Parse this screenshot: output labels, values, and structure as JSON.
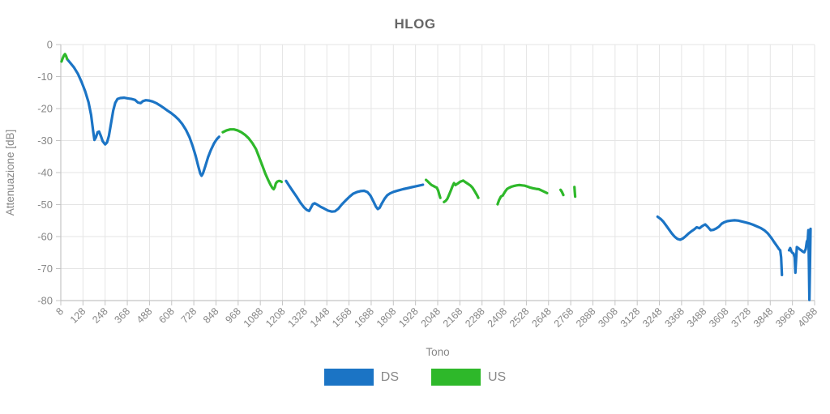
{
  "chart_data": {
    "type": "line",
    "title": "HLOG",
    "xlabel": "Tono",
    "ylabel": "Attenuazione [dB]",
    "xlim": [
      8,
      4088
    ],
    "ylim": [
      -80,
      0
    ],
    "grid": true,
    "legend_position": "bottom",
    "x_ticks": [
      8,
      128,
      248,
      368,
      488,
      608,
      728,
      848,
      968,
      1088,
      1208,
      1328,
      1448,
      1568,
      1688,
      1808,
      1928,
      2048,
      2168,
      2288,
      2408,
      2528,
      2648,
      2768,
      2888,
      3008,
      3128,
      3248,
      3368,
      3488,
      3608,
      3728,
      3848,
      3968,
      4088
    ],
    "y_ticks": [
      0,
      -10,
      -20,
      -30,
      -40,
      -50,
      -60,
      -70,
      -80
    ],
    "series": [
      {
        "name": "DS",
        "color": "#1b74c5",
        "segments": [
          [
            [
              43,
              -4.6
            ],
            [
              60,
              -5.8
            ],
            [
              80,
              -7.2
            ],
            [
              100,
              -9.1
            ],
            [
              120,
              -11.6
            ],
            [
              140,
              -14.6
            ],
            [
              158,
              -18
            ],
            [
              172,
              -22
            ],
            [
              183,
              -27
            ],
            [
              190,
              -29.8
            ],
            [
              198,
              -29
            ],
            [
              207,
              -27.4
            ],
            [
              215,
              -27.2
            ],
            [
              224,
              -28.4
            ],
            [
              235,
              -30.2
            ],
            [
              248,
              -31.2
            ],
            [
              258,
              -30.6
            ],
            [
              268,
              -28.6
            ],
            [
              280,
              -24.6
            ],
            [
              292,
              -20.6
            ],
            [
              303,
              -18.2
            ],
            [
              315,
              -17
            ],
            [
              330,
              -16.7
            ],
            [
              350,
              -16.6
            ],
            [
              370,
              -16.8
            ],
            [
              390,
              -17
            ],
            [
              410,
              -17.3
            ],
            [
              425,
              -18.1
            ],
            [
              440,
              -18.3
            ],
            [
              452,
              -17.7
            ],
            [
              468,
              -17.4
            ],
            [
              485,
              -17.5
            ],
            [
              505,
              -17.8
            ],
            [
              525,
              -18.3
            ],
            [
              545,
              -19
            ],
            [
              565,
              -19.8
            ],
            [
              585,
              -20.6
            ],
            [
              605,
              -21.4
            ],
            [
              625,
              -22.3
            ],
            [
              645,
              -23.4
            ],
            [
              665,
              -24.8
            ],
            [
              685,
              -26.6
            ],
            [
              705,
              -29
            ],
            [
              722,
              -31.8
            ],
            [
              738,
              -34.8
            ],
            [
              752,
              -38
            ],
            [
              763,
              -40.3
            ],
            [
              770,
              -41
            ],
            [
              778,
              -40.2
            ],
            [
              790,
              -38
            ],
            [
              805,
              -35.2
            ],
            [
              820,
              -33
            ],
            [
              838,
              -30.8
            ],
            [
              852,
              -29.6
            ],
            [
              865,
              -28.8
            ]
          ],
          [
            [
              1227,
              -42.6
            ],
            [
              1245,
              -44.2
            ],
            [
              1265,
              -45.9
            ],
            [
              1285,
              -47.6
            ],
            [
              1305,
              -49.4
            ],
            [
              1325,
              -50.9
            ],
            [
              1340,
              -51.7
            ],
            [
              1352,
              -52
            ],
            [
              1362,
              -51
            ],
            [
              1372,
              -49.9
            ],
            [
              1382,
              -49.6
            ],
            [
              1395,
              -50
            ],
            [
              1415,
              -50.7
            ],
            [
              1435,
              -51.3
            ],
            [
              1455,
              -51.9
            ],
            [
              1475,
              -52.2
            ],
            [
              1492,
              -52.1
            ],
            [
              1510,
              -51.3
            ],
            [
              1530,
              -49.9
            ],
            [
              1550,
              -48.7
            ],
            [
              1570,
              -47.6
            ],
            [
              1590,
              -46.6
            ],
            [
              1610,
              -46.1
            ],
            [
              1630,
              -45.8
            ],
            [
              1650,
              -45.7
            ],
            [
              1668,
              -46.1
            ],
            [
              1684,
              -47.2
            ],
            [
              1700,
              -49
            ],
            [
              1714,
              -50.7
            ],
            [
              1724,
              -51.4
            ],
            [
              1734,
              -51
            ],
            [
              1746,
              -49.6
            ],
            [
              1760,
              -48.2
            ],
            [
              1775,
              -47.1
            ],
            [
              1790,
              -46.5
            ],
            [
              1810,
              -46
            ],
            [
              1835,
              -45.6
            ],
            [
              1860,
              -45.2
            ],
            [
              1890,
              -44.8
            ],
            [
              1920,
              -44.4
            ],
            [
              1945,
              -44.1
            ],
            [
              1968,
              -43.8
            ]
          ],
          [
            [
              3238,
              -53.8
            ],
            [
              3255,
              -54.5
            ],
            [
              3270,
              -55.4
            ],
            [
              3285,
              -56.6
            ],
            [
              3300,
              -57.8
            ],
            [
              3315,
              -59
            ],
            [
              3330,
              -60
            ],
            [
              3345,
              -60.7
            ],
            [
              3360,
              -61
            ],
            [
              3375,
              -60.6
            ],
            [
              3390,
              -59.9
            ],
            [
              3405,
              -59.1
            ],
            [
              3420,
              -58.4
            ],
            [
              3435,
              -57.8
            ],
            [
              3450,
              -57.1
            ],
            [
              3465,
              -57.4
            ],
            [
              3480,
              -56.7
            ],
            [
              3496,
              -56.2
            ],
            [
              3510,
              -57
            ],
            [
              3525,
              -58
            ],
            [
              3540,
              -57.9
            ],
            [
              3555,
              -57.5
            ],
            [
              3570,
              -56.9
            ],
            [
              3585,
              -56
            ],
            [
              3600,
              -55.5
            ],
            [
              3615,
              -55.2
            ],
            [
              3635,
              -55
            ],
            [
              3655,
              -54.9
            ],
            [
              3675,
              -55
            ],
            [
              3695,
              -55.3
            ],
            [
              3715,
              -55.6
            ],
            [
              3735,
              -55.9
            ],
            [
              3755,
              -56.3
            ],
            [
              3775,
              -56.8
            ],
            [
              3795,
              -57.3
            ],
            [
              3815,
              -58
            ],
            [
              3835,
              -59
            ],
            [
              3855,
              -60.5
            ],
            [
              3870,
              -61.8
            ],
            [
              3885,
              -63
            ],
            [
              3895,
              -63.9
            ],
            [
              3902,
              -64.3
            ],
            [
              3907,
              -66.5
            ],
            [
              3911,
              -72
            ]
          ],
          [
            [
              3950,
              -64.3
            ],
            [
              3956,
              -63.6
            ],
            [
              3962,
              -64.6
            ],
            [
              3968,
              -65.1
            ],
            [
              3974,
              -65.3
            ],
            [
              3980,
              -66.5
            ],
            [
              3984,
              -71.3
            ],
            [
              3988,
              -67
            ],
            [
              3992,
              -63.3
            ],
            [
              4000,
              -63.6
            ],
            [
              4008,
              -64
            ],
            [
              4016,
              -64.3
            ],
            [
              4024,
              -64.7
            ],
            [
              4032,
              -64.9
            ],
            [
              4040,
              -63.9
            ],
            [
              4046,
              -61.6
            ],
            [
              4051,
              -60.9
            ],
            [
              4054,
              -58
            ],
            [
              4057,
              -67
            ],
            [
              4060,
              -79.8
            ],
            [
              4063,
              -69
            ],
            [
              4066,
              -57.6
            ]
          ]
        ]
      },
      {
        "name": "US",
        "color": "#2eb82a",
        "segments": [
          [
            [
              12,
              -5.3
            ],
            [
              18,
              -4.3
            ],
            [
              25,
              -3.4
            ],
            [
              31,
              -3
            ],
            [
              36,
              -3.5
            ],
            [
              42,
              -4.5
            ]
          ],
          [
            [
              885,
              -27.4
            ],
            [
              905,
              -26.8
            ],
            [
              925,
              -26.5
            ],
            [
              945,
              -26.5
            ],
            [
              965,
              -26.8
            ],
            [
              985,
              -27.4
            ],
            [
              1005,
              -28.2
            ],
            [
              1025,
              -29.3
            ],
            [
              1045,
              -30.8
            ],
            [
              1065,
              -32.7
            ],
            [
              1083,
              -35.4
            ],
            [
              1100,
              -38
            ],
            [
              1115,
              -40.3
            ],
            [
              1130,
              -42.3
            ],
            [
              1143,
              -43.8
            ],
            [
              1153,
              -44.8
            ],
            [
              1160,
              -45.2
            ],
            [
              1166,
              -44.6
            ],
            [
              1172,
              -43.4
            ],
            [
              1180,
              -42.8
            ],
            [
              1190,
              -42.6
            ],
            [
              1198,
              -42.7
            ],
            [
              1203,
              -42.9
            ]
          ],
          [
            [
              1985,
              -42.3
            ],
            [
              1995,
              -42.8
            ],
            [
              2005,
              -43.4
            ],
            [
              2015,
              -43.9
            ],
            [
              2025,
              -44.2
            ],
            [
              2035,
              -44.5
            ],
            [
              2043,
              -44.7
            ],
            [
              2050,
              -45.6
            ],
            [
              2056,
              -46.7
            ],
            [
              2062,
              -47.9
            ]
          ],
          [
            [
              2082,
              -49.2
            ],
            [
              2092,
              -48.8
            ],
            [
              2100,
              -48.2
            ],
            [
              2110,
              -46.9
            ],
            [
              2120,
              -45.5
            ],
            [
              2128,
              -44.3
            ],
            [
              2136,
              -43.3
            ],
            [
              2144,
              -43.9
            ],
            [
              2152,
              -43.6
            ],
            [
              2160,
              -43.3
            ],
            [
              2168,
              -42.9
            ],
            [
              2176,
              -42.7
            ],
            [
              2186,
              -42.5
            ],
            [
              2196,
              -42.9
            ],
            [
              2206,
              -43.3
            ],
            [
              2216,
              -43.7
            ],
            [
              2226,
              -44.1
            ],
            [
              2236,
              -44.7
            ],
            [
              2246,
              -45.6
            ],
            [
              2255,
              -46.5
            ],
            [
              2262,
              -47.2
            ],
            [
              2268,
              -47.9
            ]
          ],
          [
            [
              2372,
              -49.9
            ],
            [
              2380,
              -48.6
            ],
            [
              2390,
              -47.5
            ],
            [
              2400,
              -47.2
            ],
            [
              2412,
              -46
            ],
            [
              2424,
              -45.1
            ],
            [
              2436,
              -44.7
            ],
            [
              2448,
              -44.4
            ],
            [
              2460,
              -44.2
            ],
            [
              2475,
              -44
            ],
            [
              2490,
              -43.9
            ],
            [
              2505,
              -44
            ],
            [
              2520,
              -44.1
            ],
            [
              2535,
              -44.4
            ],
            [
              2550,
              -44.7
            ],
            [
              2565,
              -44.9
            ],
            [
              2580,
              -45.1
            ],
            [
              2595,
              -45.2
            ],
            [
              2610,
              -45.6
            ],
            [
              2625,
              -46
            ],
            [
              2640,
              -46.4
            ]
          ],
          [
            [
              2713,
              -45.4
            ],
            [
              2720,
              -46
            ],
            [
              2728,
              -47
            ]
          ],
          [
            [
              2788,
              -44.5
            ],
            [
              2790,
              -46
            ],
            [
              2792,
              -47.5
            ]
          ]
        ]
      }
    ],
    "style": {
      "grid_color": "#e5e5e5",
      "axis_color": "#c4c4c4",
      "tick_text_color": "#878787",
      "title_color": "#666666",
      "legend_text_color": "#888888"
    }
  }
}
